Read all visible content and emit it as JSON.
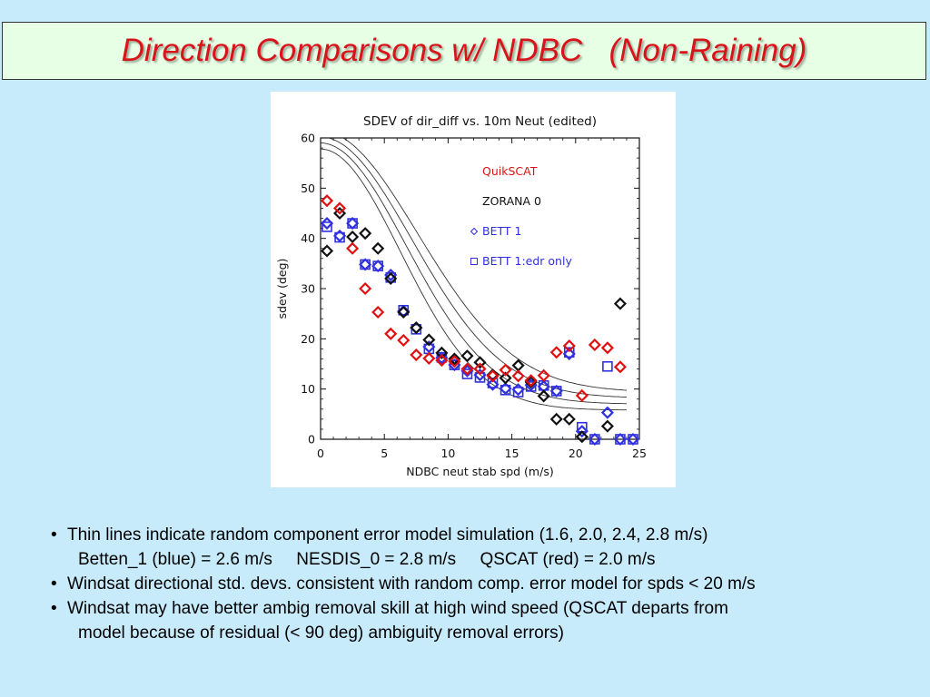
{
  "slide": {
    "title": "Direction Comparisons w/ NDBC   (Non-Raining)",
    "bullets": [
      {
        "text": "Thin lines indicate random component error model simulation (1.6, 2.0, 2.4, 2.8 m/s)",
        "continuation": "Betten_1 (blue) = 2.6 m/s     NESDIS_0 = 2.8 m/s     QSCAT (red) = 2.0 m/s"
      },
      {
        "text": "Windsat directional std. devs. consistent with random comp. error model for spds < 20 m/s",
        "continuation": ""
      },
      {
        "text": "Windsat may have better ambig removal skill at high wind speed (QSCAT departs from",
        "continuation": "model because of residual (< 90 deg) ambiguity removal errors)"
      }
    ]
  },
  "colors": {
    "background": "#c7ebfb",
    "title_box": "#e7ffe5",
    "title_text": "#d8141a",
    "quikscat": "#e01010",
    "zorana": "#111111",
    "bett": "#3030e0"
  },
  "chart_data": {
    "type": "scatter",
    "title": "SDEV of dir_diff vs. 10m Neut (edited)",
    "xlabel": "NDBC neut stab spd (m/s)",
    "ylabel": "sdev (deg)",
    "xlim": [
      0,
      25
    ],
    "ylim": [
      0,
      60
    ],
    "xticks": [
      0,
      5,
      10,
      15,
      20,
      25
    ],
    "yticks": [
      0,
      10,
      20,
      30,
      40,
      50,
      60
    ],
    "legend_placement": "top-right inside",
    "series": [
      {
        "name": "QuikSCAT",
        "marker": "diamond",
        "color": "#e01010",
        "points": [
          [
            0.5,
            47.5
          ],
          [
            1.5,
            46
          ],
          [
            2.5,
            38
          ],
          [
            3.5,
            30
          ],
          [
            4.5,
            25.3
          ],
          [
            5.5,
            21
          ],
          [
            6.5,
            19.7
          ],
          [
            7.5,
            16.8
          ],
          [
            8.5,
            16.1
          ],
          [
            9.5,
            15.7
          ],
          [
            10.5,
            15.5
          ],
          [
            11.5,
            14
          ],
          [
            12.5,
            14
          ],
          [
            13.5,
            12.6
          ],
          [
            14.5,
            13.8
          ],
          [
            15.5,
            12.6
          ],
          [
            16.5,
            11.7
          ],
          [
            17.5,
            12.7
          ],
          [
            18.5,
            17.3
          ],
          [
            19.5,
            18.6
          ],
          [
            20.5,
            8.7
          ],
          [
            21.5,
            18.8
          ],
          [
            22.5,
            18.2
          ],
          [
            23.5,
            14.4
          ]
        ]
      },
      {
        "name": "ZORANA 0",
        "marker": "diamond",
        "color": "#111111",
        "points": [
          [
            0.5,
            37.5
          ],
          [
            1.5,
            45
          ],
          [
            2.5,
            40.3
          ],
          [
            3.5,
            41
          ],
          [
            4.5,
            38
          ],
          [
            5.5,
            32
          ],
          [
            6.5,
            25.3
          ],
          [
            7.5,
            22.2
          ],
          [
            8.5,
            19.8
          ],
          [
            9.5,
            17.2
          ],
          [
            10.5,
            16
          ],
          [
            11.5,
            16.6
          ],
          [
            12.5,
            15.3
          ],
          [
            13.5,
            12.8
          ],
          [
            14.5,
            12.2
          ],
          [
            15.5,
            14.7
          ],
          [
            16.5,
            11.4
          ],
          [
            17.5,
            8.6
          ],
          [
            18.5,
            4
          ],
          [
            19.5,
            4
          ],
          [
            20.5,
            0.5
          ],
          [
            22.5,
            2.6
          ],
          [
            23.5,
            27
          ]
        ]
      },
      {
        "name": "BETT  1",
        "marker": "diamond",
        "color": "#3030e0",
        "points": [
          [
            0.5,
            43
          ],
          [
            1.5,
            40.5
          ],
          [
            2.5,
            43
          ],
          [
            3.5,
            34.8
          ],
          [
            4.5,
            34.5
          ],
          [
            5.5,
            32.7
          ],
          [
            6.5,
            25.5
          ],
          [
            7.5,
            22.2
          ],
          [
            8.5,
            18.4
          ],
          [
            9.5,
            16.2
          ],
          [
            10.5,
            14.8
          ],
          [
            11.5,
            13.6
          ],
          [
            12.5,
            12.8
          ],
          [
            13.5,
            10.9
          ],
          [
            14.5,
            10.1
          ],
          [
            15.5,
            9.9
          ],
          [
            16.5,
            10.8
          ],
          [
            17.5,
            10.5
          ],
          [
            18.5,
            9.6
          ],
          [
            19.5,
            17
          ],
          [
            20.5,
            1.6
          ],
          [
            21.5,
            0
          ],
          [
            22.5,
            5.3
          ],
          [
            23.5,
            0
          ],
          [
            24.5,
            0
          ]
        ]
      },
      {
        "name": "BETT  1:edr  only",
        "marker": "square",
        "color": "#3030e0",
        "points": [
          [
            0.5,
            42.3
          ],
          [
            1.5,
            40.2
          ],
          [
            2.5,
            43
          ],
          [
            3.5,
            34.8
          ],
          [
            4.5,
            34.5
          ],
          [
            5.5,
            32.2
          ],
          [
            6.5,
            25.7
          ],
          [
            7.5,
            21.9
          ],
          [
            8.5,
            18
          ],
          [
            9.5,
            16.3
          ],
          [
            10.5,
            14.8
          ],
          [
            11.5,
            13
          ],
          [
            12.5,
            12.3
          ],
          [
            13.5,
            11.2
          ],
          [
            14.5,
            9.8
          ],
          [
            15.5,
            9.4
          ],
          [
            16.5,
            10.5
          ],
          [
            17.5,
            10.7
          ],
          [
            18.5,
            9.6
          ],
          [
            19.5,
            17.3
          ],
          [
            20.5,
            2.4
          ],
          [
            21.5,
            0
          ],
          [
            22.5,
            14.5
          ],
          [
            23.5,
            0
          ],
          [
            24.5,
            0
          ]
        ]
      }
    ],
    "model_curves": {
      "speeds_m_s": [
        1.6,
        2.0,
        2.4,
        2.8
      ],
      "color": "#333333"
    }
  }
}
